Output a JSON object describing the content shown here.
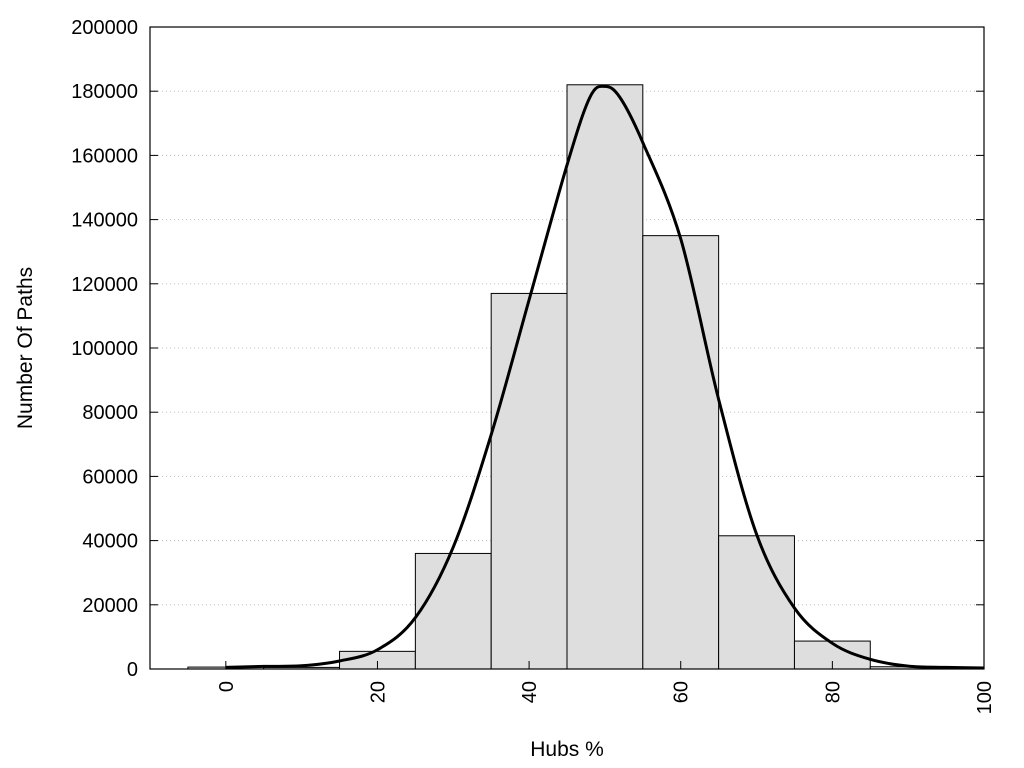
{
  "chart_data": {
    "type": "bar",
    "xlabel": "Hubs %",
    "ylabel": "Number Of Paths",
    "xlim": [
      -10,
      100
    ],
    "ylim": [
      0,
      200000
    ],
    "x_ticks": [
      0,
      20,
      40,
      60,
      80,
      100
    ],
    "y_ticks": [
      0,
      20000,
      40000,
      60000,
      80000,
      100000,
      120000,
      140000,
      160000,
      180000,
      200000
    ],
    "bin_width": 10,
    "bins": [
      {
        "center": 0,
        "value": 600
      },
      {
        "center": 10,
        "value": 500
      },
      {
        "center": 20,
        "value": 5500
      },
      {
        "center": 30,
        "value": 36000
      },
      {
        "center": 40,
        "value": 117000
      },
      {
        "center": 50,
        "value": 182000
      },
      {
        "center": 60,
        "value": 135000
      },
      {
        "center": 70,
        "value": 41500
      },
      {
        "center": 80,
        "value": 8700
      },
      {
        "center": 90,
        "value": 700
      }
    ],
    "curve": {
      "x": [
        0,
        5,
        10,
        15,
        20,
        25,
        30,
        35,
        40,
        45,
        48,
        50,
        52,
        55,
        60,
        65,
        70,
        75,
        80,
        85,
        90,
        95,
        100
      ],
      "y": [
        500,
        800,
        1000,
        2500,
        6000,
        16000,
        38000,
        73000,
        115000,
        157000,
        178000,
        181500,
        178000,
        164000,
        134000,
        84000,
        42000,
        19000,
        8000,
        3000,
        900,
        500,
        300
      ]
    },
    "grid": true,
    "grid_axis": "y"
  }
}
